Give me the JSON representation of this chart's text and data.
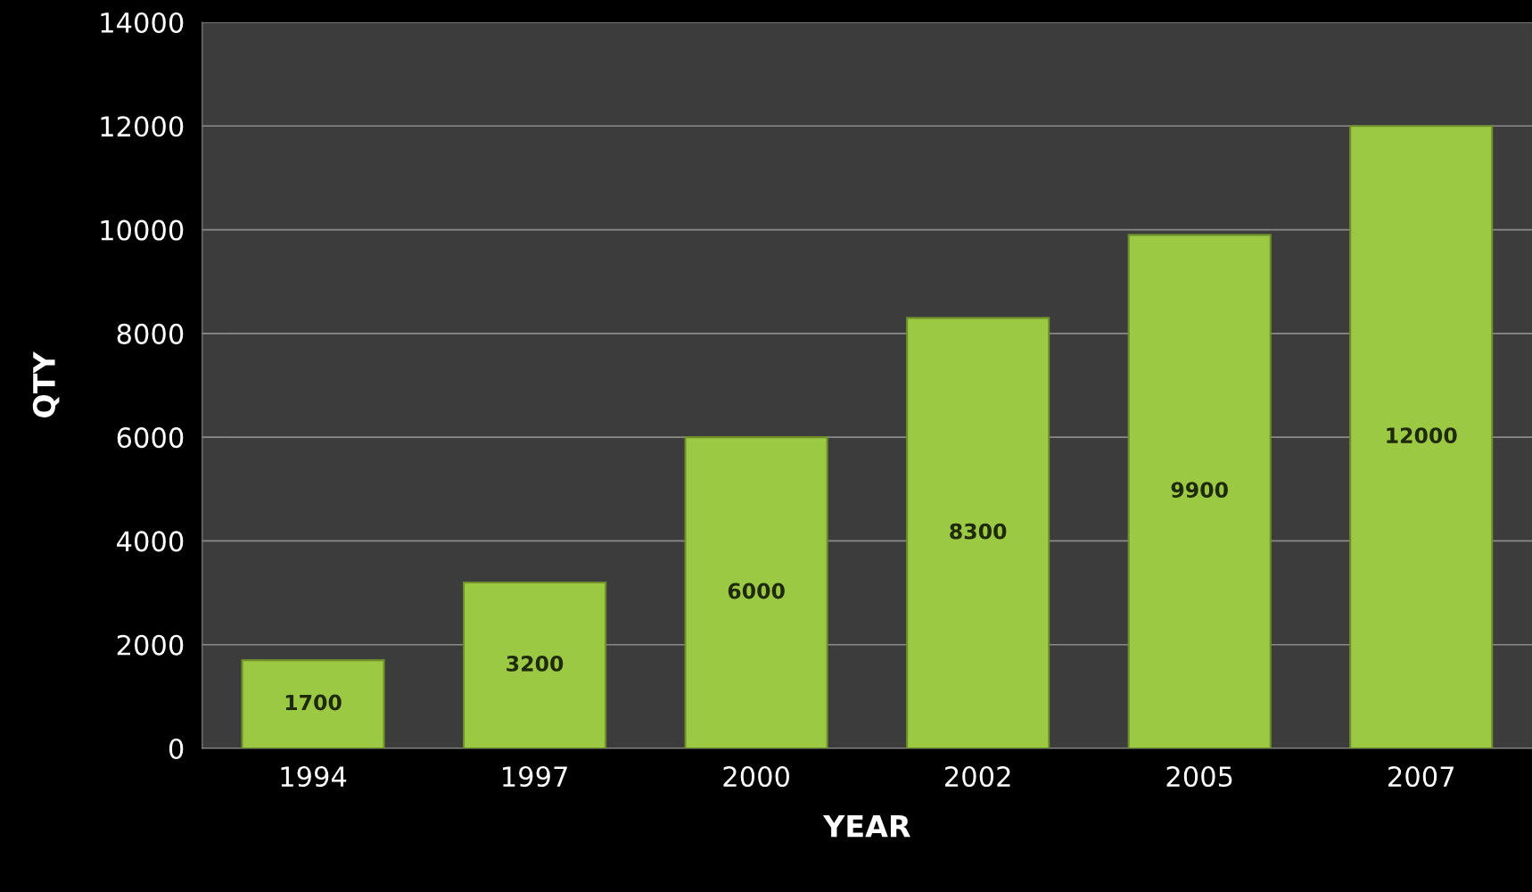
{
  "chart_data": {
    "type": "bar",
    "xlabel": "YEAR",
    "ylabel": "QTY",
    "categories": [
      "1994",
      "1997",
      "2000",
      "2002",
      "2005",
      "2007"
    ],
    "values": [
      1700,
      3200,
      6000,
      8300,
      9900,
      12000
    ],
    "color": "#9cc943",
    "ylim": [
      0,
      14000
    ],
    "yticks": [
      0,
      2000,
      4000,
      6000,
      8000,
      10000,
      12000,
      14000
    ],
    "grid": "y",
    "data_labels": true
  }
}
